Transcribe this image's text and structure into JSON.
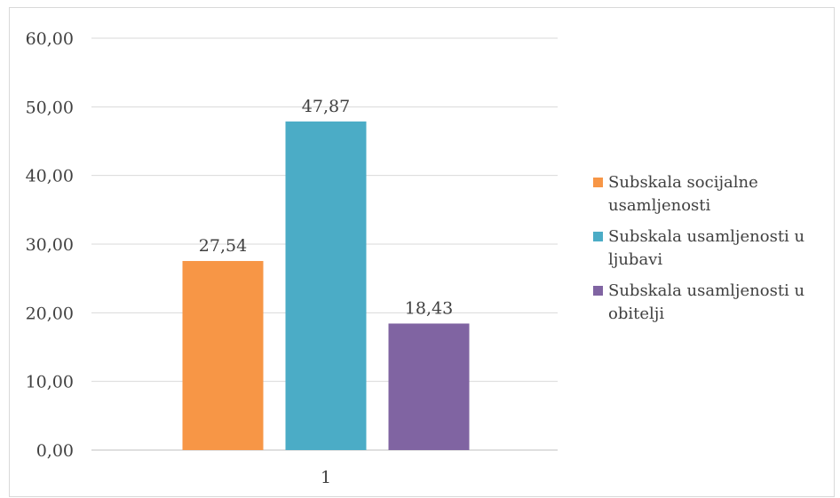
{
  "chart_data": {
    "type": "bar",
    "categories": [
      "1"
    ],
    "series": [
      {
        "name": "Subskala socijalne usamljenosti",
        "values": [
          27.54
        ],
        "label": "27,54",
        "color": "#F79646"
      },
      {
        "name": "Subskala usamljenosti u ljubavi",
        "values": [
          47.87
        ],
        "label": "47,87",
        "color": "#4BACC6"
      },
      {
        "name": "Subskala usamljenosti u obitelji",
        "values": [
          18.43
        ],
        "label": "18,43",
        "color": "#8064A2"
      }
    ],
    "ylim": [
      0,
      60
    ],
    "yticks": [
      0,
      10,
      20,
      30,
      40,
      50,
      60
    ],
    "ytick_labels": [
      "0,00",
      "10,00",
      "20,00",
      "30,00",
      "40,00",
      "50,00",
      "60,00"
    ],
    "title": "",
    "xlabel": "",
    "ylabel": "",
    "grid": true,
    "legend_position": "right"
  }
}
